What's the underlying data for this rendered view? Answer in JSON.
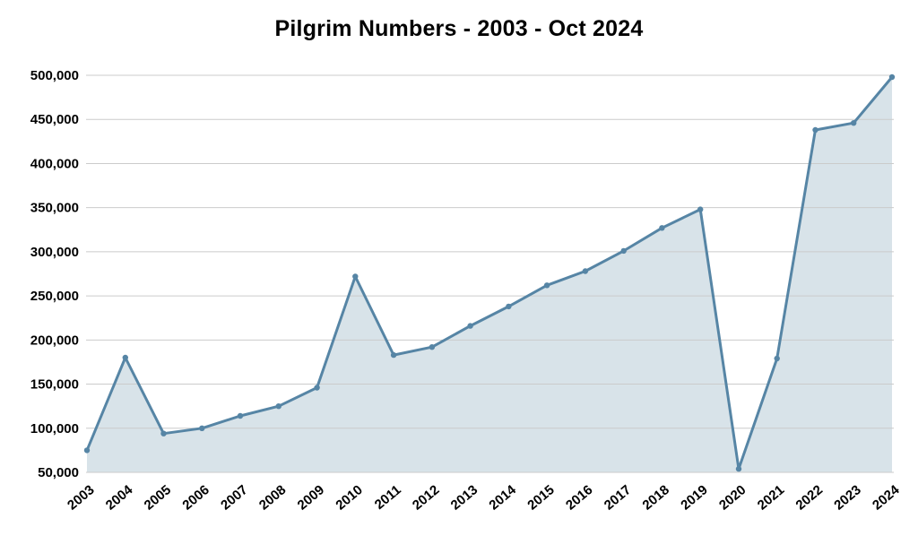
{
  "title": "Pilgrim Numbers - 2003 - Oct 2024",
  "chart_data": {
    "type": "area",
    "title": "Pilgrim Numbers - 2003 - Oct 2024",
    "categories": [
      "2003",
      "2004",
      "2005",
      "2006",
      "2007",
      "2008",
      "2009",
      "2010",
      "2011",
      "2012",
      "2013",
      "2014",
      "2015",
      "2016",
      "2017",
      "2018",
      "2019",
      "2020",
      "2021",
      "2022",
      "2023",
      "2024"
    ],
    "series": [
      {
        "name": "Pilgrim Numbers",
        "values": [
          75000,
          180000,
          94000,
          100000,
          114000,
          125000,
          146000,
          272000,
          183000,
          192000,
          216000,
          238000,
          262000,
          278000,
          301000,
          327000,
          348000,
          54000,
          179000,
          438000,
          446000,
          498000
        ]
      }
    ],
    "xlabel": "",
    "ylabel": "",
    "ylim": [
      50000,
      500000
    ],
    "yticks": [
      50000,
      100000,
      150000,
      200000,
      250000,
      300000,
      350000,
      400000,
      450000,
      500000
    ],
    "grid": true,
    "legend": false,
    "marker": true,
    "colors": {
      "line": "#5685a5",
      "fill": "#d8e3e9",
      "grid": "#cbcbcb",
      "text": "#000000",
      "background": "#ffffff"
    }
  }
}
